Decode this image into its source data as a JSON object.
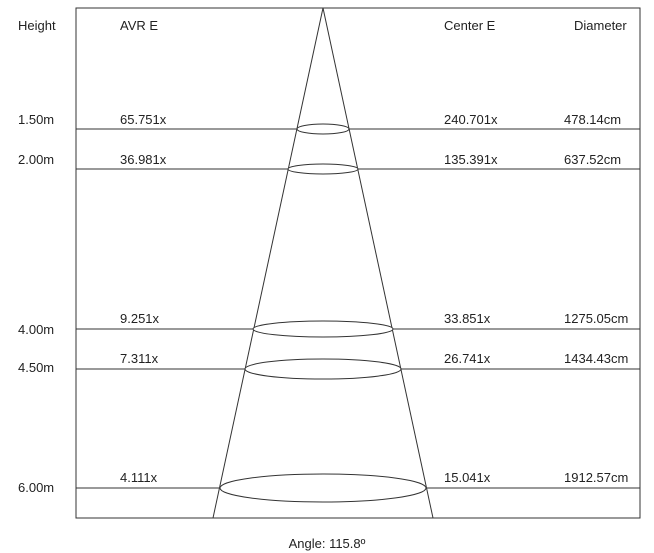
{
  "headers": {
    "height": "Height",
    "avr_e": "AVR E",
    "center_e": "Center E",
    "diameter": "Diameter"
  },
  "rows": [
    {
      "height": "1.50m",
      "avr_e": "65.751x",
      "center_e": "240.701x",
      "diameter": "478.14cm"
    },
    {
      "height": "2.00m",
      "avr_e": "36.981x",
      "center_e": "135.391x",
      "diameter": "637.52cm"
    },
    {
      "height": "4.00m",
      "avr_e": "9.251x",
      "center_e": "33.851x",
      "diameter": "1275.05cm"
    },
    {
      "height": "4.50m",
      "avr_e": "7.311x",
      "center_e": "26.741x",
      "diameter": "1434.43cm"
    },
    {
      "height": "6.00m",
      "avr_e": "4.111x",
      "center_e": "15.041x",
      "diameter": "1912.57cm"
    }
  ],
  "angle_label": "Angle: 115.8º",
  "colors": {
    "line": "#333333",
    "text": "#222222"
  }
}
